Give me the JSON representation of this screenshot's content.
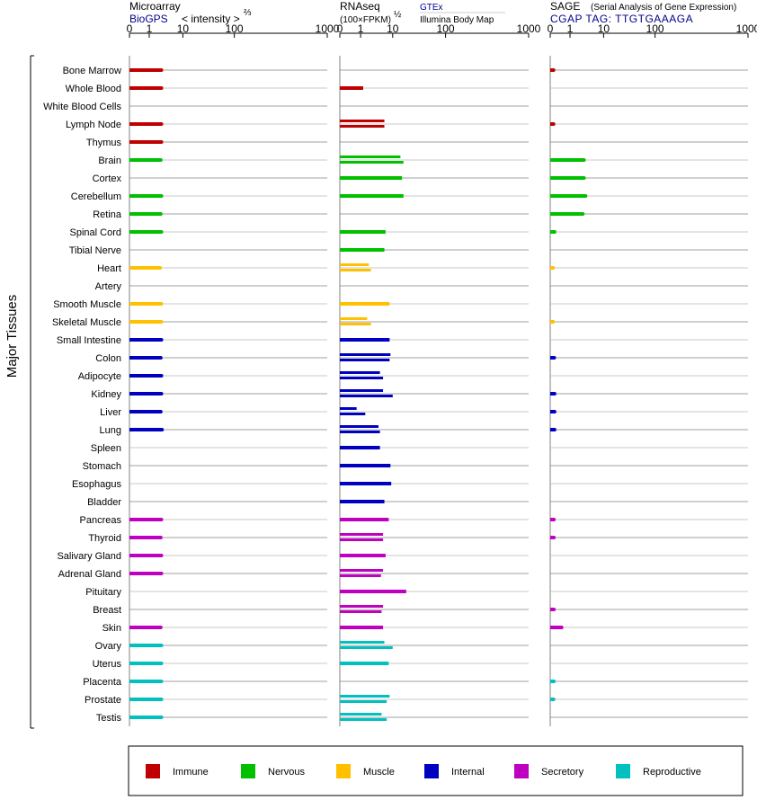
{
  "chart_data": {
    "type": "bar",
    "y_axis_label": "Major Tissues",
    "panels": [
      {
        "title": "Microarray",
        "source": "BioGPS",
        "unit_text": "< intensity >",
        "unit_exp": "⅔",
        "ticks": [
          "0",
          "1",
          "10",
          "100",
          "1000"
        ],
        "xlim": [
          0,
          1000
        ],
        "series_by_tissue": [
          [
            2.3
          ],
          [
            2.3
          ],
          [],
          [
            2.3
          ],
          [
            2.3
          ],
          [
            2.2
          ],
          [],
          [
            2.3
          ],
          [
            2.2
          ],
          [
            2.3
          ],
          [],
          [
            2.1
          ],
          [],
          [
            2.3
          ],
          [
            2.3
          ],
          [
            2.3
          ],
          [
            2.2
          ],
          [
            2.3
          ],
          [
            2.3
          ],
          [
            2.2
          ],
          [
            2.4
          ],
          [],
          [],
          [],
          [],
          [
            2.3
          ],
          [
            2.2
          ],
          [
            2.3
          ],
          [
            2.3
          ],
          [],
          [],
          [
            2.2
          ],
          [
            2.3
          ],
          [
            2.3
          ],
          [
            2.3
          ],
          [
            2.3
          ],
          [
            2.3
          ]
        ]
      },
      {
        "title": "RNAseq",
        "unit_text": "(100×FPKM)",
        "unit_exp": "½",
        "source_top": "GTEx",
        "source_bottom": "Illumina Body Map",
        "ticks": [
          "0",
          "1",
          "10",
          "100",
          "1000"
        ],
        "xlim": [
          0,
          1000
        ],
        "series_by_tissue": [
          [],
          [
            1.2
          ],
          [],
          [
            5.5,
            5.5
          ],
          [],
          [
            14,
            16
          ],
          [
            15
          ],
          [
            16
          ],
          [],
          [
            6
          ],
          [
            5.5
          ],
          [
            1.8,
            2.1
          ],
          [],
          [
            8
          ],
          [
            1.6,
            2.1
          ],
          [
            8
          ],
          [
            8.5,
            8
          ],
          [
            4,
            5
          ],
          [
            5,
            10
          ],
          [
            0.7,
            1.4
          ],
          [
            3.6,
            4
          ],
          [
            4
          ],
          [
            8.5
          ],
          [
            9
          ],
          [
            5.5
          ],
          [
            7.5
          ],
          [
            5,
            5
          ],
          [
            6
          ],
          [
            5,
            4.3
          ],
          [
            18
          ],
          [
            5,
            4.5
          ],
          [
            5
          ],
          [
            5.5,
            10
          ],
          [
            7.5
          ],
          [],
          [
            8,
            6.5
          ],
          [
            4.5,
            6.5
          ]
        ]
      },
      {
        "title": "SAGE",
        "subtitle": "(Serial Analysis of Gene Expression)",
        "source": "CGAP TAG: TTGTGAAAGA",
        "ticks": [
          "0",
          "1",
          "10",
          "100",
          "1000"
        ],
        "xlim": [
          0,
          1000
        ],
        "series_by_tissue": [
          [
            0.05
          ],
          [],
          [],
          [
            0.05
          ],
          [],
          [
            2.6
          ],
          [
            2.6
          ],
          [
            2.9
          ],
          [
            2.4
          ],
          [
            0.08
          ],
          [],
          [
            0.04
          ],
          [],
          [],
          [
            0.04
          ],
          [],
          [
            0.07
          ],
          [],
          [
            0.08
          ],
          [
            0.08
          ],
          [
            0.08
          ],
          [],
          [],
          [],
          [],
          [
            0.06
          ],
          [
            0.06
          ],
          [],
          [],
          [],
          [
            0.06
          ],
          [
            0.4
          ],
          [],
          [],
          [
            0.06
          ],
          [
            0.05
          ],
          []
        ]
      }
    ],
    "tissues": [
      {
        "name": "Bone Marrow",
        "group": 0
      },
      {
        "name": "Whole Blood",
        "group": 0
      },
      {
        "name": "White Blood Cells",
        "group": 0
      },
      {
        "name": "Lymph Node",
        "group": 0
      },
      {
        "name": "Thymus",
        "group": 0
      },
      {
        "name": "Brain",
        "group": 1
      },
      {
        "name": "Cortex",
        "group": 1
      },
      {
        "name": "Cerebellum",
        "group": 1
      },
      {
        "name": "Retina",
        "group": 1
      },
      {
        "name": "Spinal Cord",
        "group": 1
      },
      {
        "name": "Tibial Nerve",
        "group": 1
      },
      {
        "name": "Heart",
        "group": 2
      },
      {
        "name": "Artery",
        "group": 2
      },
      {
        "name": "Smooth Muscle",
        "group": 2
      },
      {
        "name": "Skeletal Muscle",
        "group": 2
      },
      {
        "name": "Small Intestine",
        "group": 3
      },
      {
        "name": "Colon",
        "group": 3
      },
      {
        "name": "Adipocyte",
        "group": 3
      },
      {
        "name": "Kidney",
        "group": 3
      },
      {
        "name": "Liver",
        "group": 3
      },
      {
        "name": "Lung",
        "group": 3
      },
      {
        "name": "Spleen",
        "group": 3
      },
      {
        "name": "Stomach",
        "group": 3
      },
      {
        "name": "Esophagus",
        "group": 3
      },
      {
        "name": "Bladder",
        "group": 3
      },
      {
        "name": "Pancreas",
        "group": 4
      },
      {
        "name": "Thyroid",
        "group": 4
      },
      {
        "name": "Salivary Gland",
        "group": 4
      },
      {
        "name": "Adrenal Gland",
        "group": 4
      },
      {
        "name": "Pituitary",
        "group": 4
      },
      {
        "name": "Breast",
        "group": 4
      },
      {
        "name": "Skin",
        "group": 4
      },
      {
        "name": "Ovary",
        "group": 5
      },
      {
        "name": "Uterus",
        "group": 5
      },
      {
        "name": "Placenta",
        "group": 5
      },
      {
        "name": "Prostate",
        "group": 5
      },
      {
        "name": "Testis",
        "group": 5
      }
    ],
    "legend": [
      {
        "label": "Immune",
        "color": "#c00000"
      },
      {
        "label": "Nervous",
        "color": "#00c000"
      },
      {
        "label": "Muscle",
        "color": "#ffc000"
      },
      {
        "label": "Internal",
        "color": "#0000c0"
      },
      {
        "label": "Secretory",
        "color": "#c000c0"
      },
      {
        "label": "Reproductive",
        "color": "#00c0c0"
      }
    ],
    "legend_placement": "bottom"
  }
}
